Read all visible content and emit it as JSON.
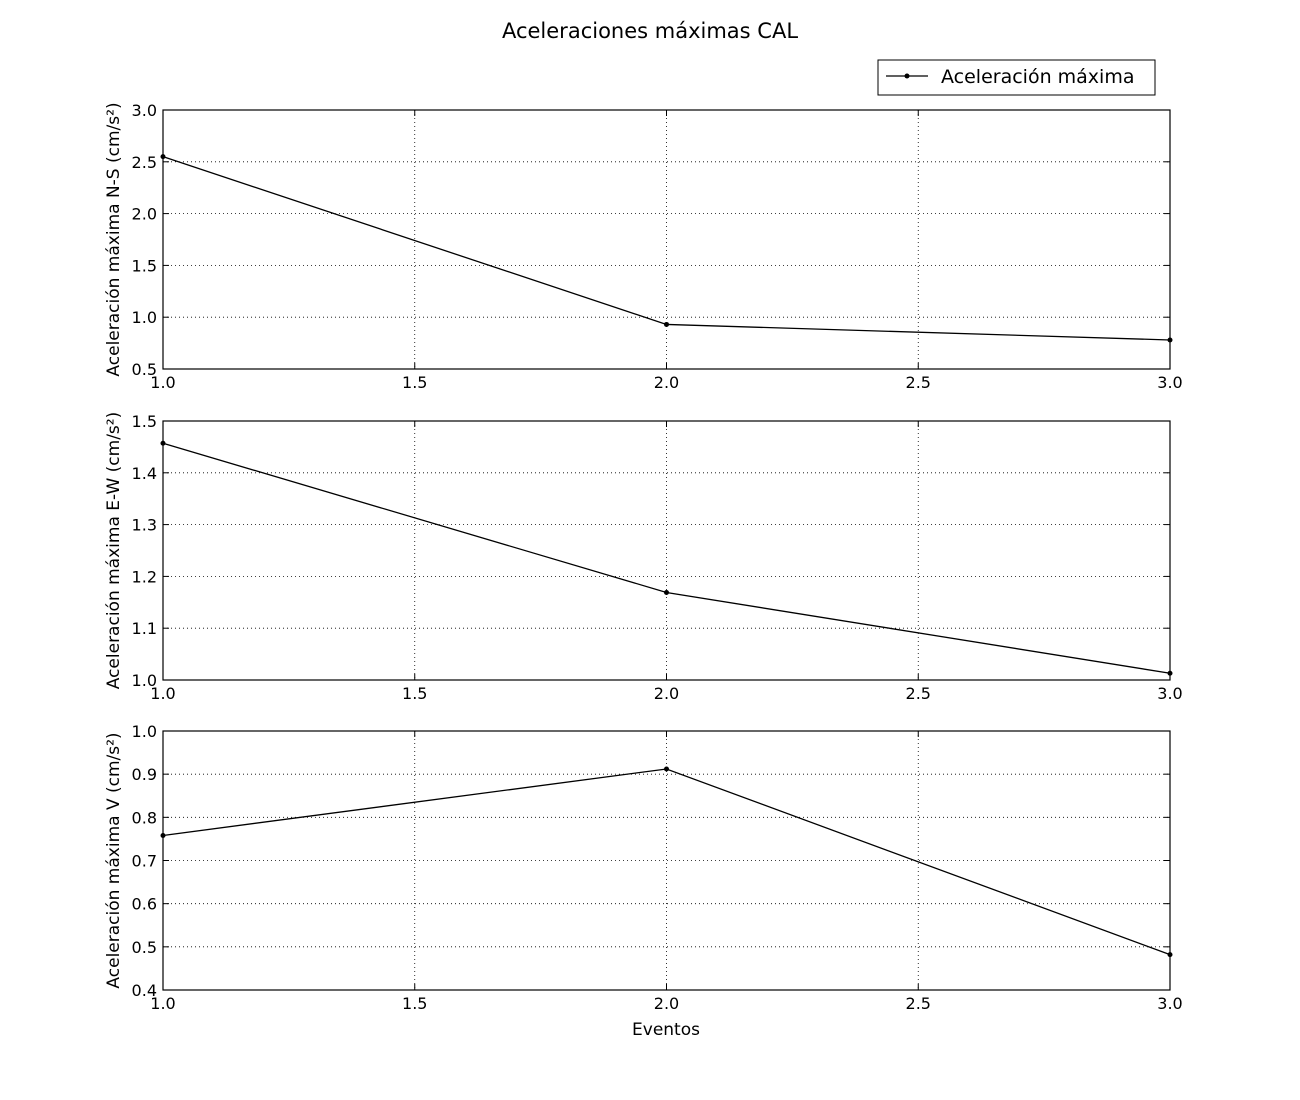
{
  "chart_data": {
    "type": "line",
    "title": "Aceleraciones máximas CAL",
    "xlabel": "Eventos",
    "legend": {
      "label": "Aceleración máxima",
      "placement": "top-right"
    },
    "grid": true,
    "line_color": "#000000",
    "x": [
      1.0,
      2.0,
      3.0
    ],
    "xlim": [
      1.0,
      3.0
    ],
    "xticks": [
      "1.0",
      "1.5",
      "2.0",
      "2.5",
      "3.0"
    ],
    "panels": [
      {
        "ylabel": "Aceleración máxima N-S (cm/s²)",
        "ylim": [
          0.5,
          3.0
        ],
        "yticks": [
          "0.5",
          "1.0",
          "1.5",
          "2.0",
          "2.5",
          "3.0"
        ],
        "values": [
          2.55,
          0.93,
          0.78
        ]
      },
      {
        "ylabel": "Aceleración máxima E-W (cm/s²)",
        "ylim": [
          1.0,
          1.5
        ],
        "yticks": [
          "1.0",
          "1.1",
          "1.2",
          "1.3",
          "1.4",
          "1.5"
        ],
        "values": [
          1.457,
          1.169,
          1.013
        ]
      },
      {
        "ylabel": "Aceleración máxima V (cm/s²)",
        "ylim": [
          0.4,
          1.0
        ],
        "yticks": [
          "0.4",
          "0.5",
          "0.6",
          "0.7",
          "0.8",
          "0.9",
          "1.0"
        ],
        "values": [
          0.758,
          0.912,
          0.482
        ]
      }
    ]
  }
}
